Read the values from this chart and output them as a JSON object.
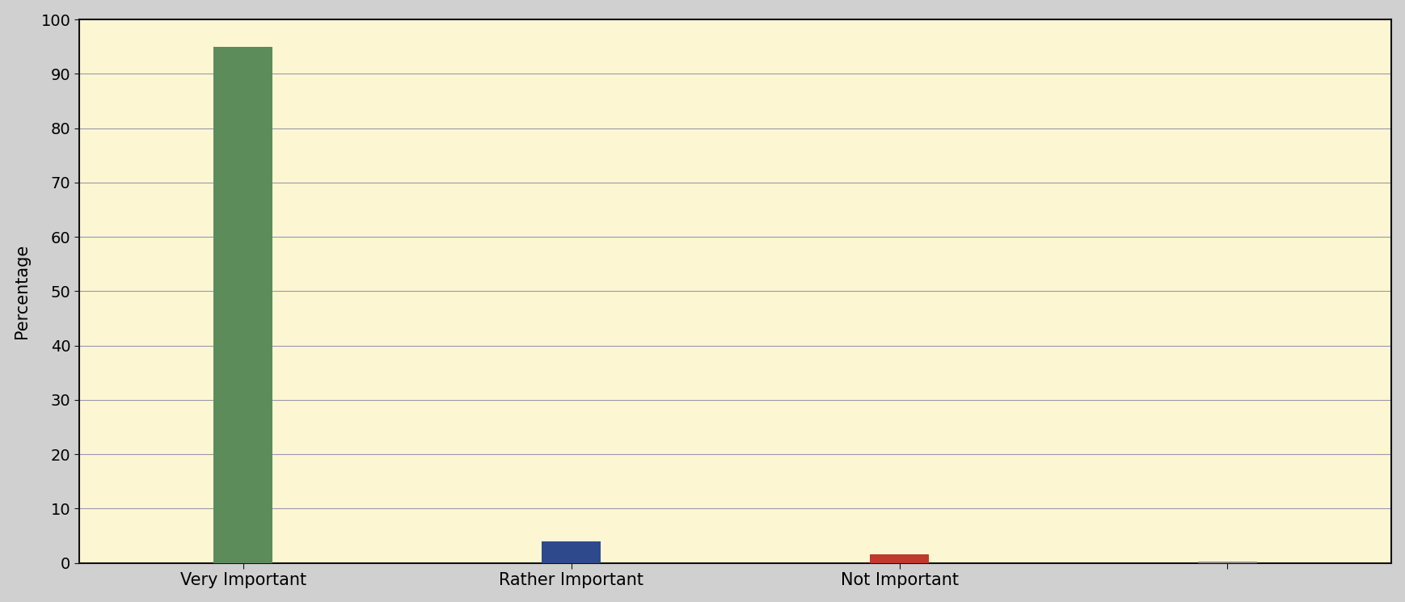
{
  "categories": [
    "Very Important",
    "Rather Important",
    "Not Important",
    ""
  ],
  "values": [
    95,
    4,
    1.5,
    0.3
  ],
  "bar_colors": [
    "#5b8c5a",
    "#2e4a8c",
    "#c0392b",
    "#888888"
  ],
  "ylabel": "Percentage",
  "ylim": [
    0,
    100
  ],
  "yticks": [
    0,
    10,
    20,
    30,
    40,
    50,
    60,
    70,
    80,
    90,
    100
  ],
  "background_color": "#fdf6d3",
  "grid_color": "#9999aa",
  "bar_width": 0.18,
  "figsize": [
    17.38,
    7.45
  ],
  "dpi": 100,
  "ylabel_fontsize": 15,
  "xtick_fontsize": 15,
  "ytick_fontsize": 14,
  "x_positions": [
    0.5,
    1.5,
    2.5,
    3.5
  ],
  "xlim": [
    0,
    4
  ]
}
